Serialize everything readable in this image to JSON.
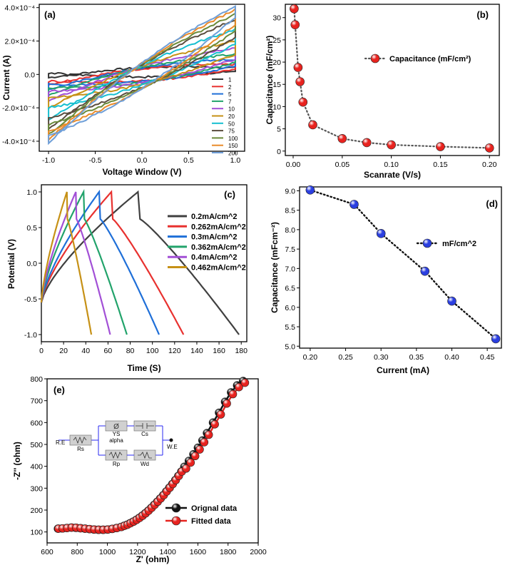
{
  "panels": {
    "a": {
      "label": "(a)",
      "xlabel": "Voltage Window (V)",
      "ylabel": "Current (A)",
      "xlim": [
        -1.1,
        1.1
      ],
      "ylim": [
        -0.00046,
        0.00042
      ],
      "xticks": [
        "-1.0",
        "-0.5",
        "0.0",
        "0.5",
        "1.0"
      ],
      "yticks": [
        "-4.0×10⁻⁴",
        "-2.0×10⁻⁴",
        "0.0",
        "2.0×10⁻⁴",
        "4.0×10⁻⁴"
      ],
      "ytick_values": [
        -0.0004,
        -0.0002,
        0,
        0.0002,
        0.0004
      ],
      "xtick_values": [
        -1.0,
        -0.5,
        0.0,
        0.5,
        1.0
      ],
      "series": [
        {
          "name": "1",
          "color": "#333333",
          "upper_left": 1e-05,
          "lower_left": -2e-05,
          "upper_right": 4e-05,
          "lower_right": 2e-05
        },
        {
          "name": "2",
          "color": "#e8312f",
          "upper_left": -4e-05,
          "lower_left": -6e-05,
          "upper_right": 6e-05,
          "lower_right": 3e-05
        },
        {
          "name": "5",
          "color": "#1f6fd8",
          "upper_left": -6e-05,
          "lower_left": -9e-05,
          "upper_right": 9e-05,
          "lower_right": 5e-05
        },
        {
          "name": "7",
          "color": "#22a36b",
          "upper_left": -8e-05,
          "lower_left": -0.00012,
          "upper_right": 0.00012,
          "lower_right": 7e-05
        },
        {
          "name": "10",
          "color": "#a24fd6",
          "upper_left": -0.0001,
          "lower_left": -0.00016,
          "upper_right": 0.00016,
          "lower_right": 9e-05
        },
        {
          "name": "20",
          "color": "#c69116",
          "upper_left": -0.00014,
          "lower_left": -0.0002,
          "upper_right": 0.0002,
          "lower_right": 0.00012
        },
        {
          "name": "50",
          "color": "#16bfd0",
          "upper_left": -0.0002,
          "lower_left": -0.00027,
          "upper_right": 0.00027,
          "lower_right": 0.00018
        },
        {
          "name": "75",
          "color": "#5a4d3e",
          "upper_left": -0.00026,
          "lower_left": -0.00033,
          "upper_right": 0.00033,
          "lower_right": 0.00022
        },
        {
          "name": "100",
          "color": "#6a8a3a",
          "upper_left": -0.0003,
          "lower_left": -0.00036,
          "upper_right": 0.00036,
          "lower_right": 0.00026
        },
        {
          "name": "150",
          "color": "#e98b2a",
          "upper_left": -0.00034,
          "lower_left": -0.00039,
          "upper_right": 0.00039,
          "lower_right": 0.0003
        },
        {
          "name": "200",
          "color": "#6f9fd8",
          "upper_left": -0.00037,
          "lower_left": -0.00041,
          "upper_right": 0.00041,
          "lower_right": 0.00034
        }
      ]
    },
    "b": {
      "label": "(b)",
      "xlabel": "Scanrate (V/s)",
      "ylabel": "Capacitance (mF/cm²)",
      "legend": "Capacitance (mF/cm²)",
      "xlim": [
        -0.008,
        0.21
      ],
      "ylim": [
        -1,
        33
      ],
      "xticks": [
        "0.00",
        "0.05",
        "0.10",
        "0.15",
        "0.20"
      ],
      "xtick_values": [
        0,
        0.05,
        0.1,
        0.15,
        0.2
      ],
      "yticks": [
        "0",
        "5",
        "10",
        "15",
        "20",
        "25",
        "30"
      ],
      "ytick_values": [
        0,
        5,
        10,
        15,
        20,
        25,
        30
      ],
      "x": [
        0.001,
        0.002,
        0.005,
        0.007,
        0.01,
        0.02,
        0.05,
        0.075,
        0.1,
        0.15,
        0.2
      ],
      "y": [
        32.0,
        28.4,
        18.8,
        15.6,
        11.0,
        5.9,
        2.8,
        1.9,
        1.4,
        1.0,
        0.7
      ],
      "color": "#e8231f"
    },
    "c": {
      "label": "(c)",
      "xlabel": "Time (S)",
      "ylabel": "Potential (V)",
      "xlim": [
        0,
        185
      ],
      "ylim": [
        -1.1,
        1.1
      ],
      "xticks": [
        "0",
        "20",
        "40",
        "60",
        "80",
        "100",
        "120",
        "140",
        "160",
        "180"
      ],
      "xtick_values": [
        0,
        20,
        40,
        60,
        80,
        100,
        120,
        140,
        160,
        180
      ],
      "yticks": [
        "-1.0",
        "-0.5",
        "0.0",
        "0.5",
        "1.0"
      ],
      "ytick_values": [
        -1,
        -0.5,
        0,
        0.5,
        1
      ],
      "series": [
        {
          "name": "0.2mA/cm^2",
          "color": "#404040",
          "t_peak": 87,
          "t_end": 178
        },
        {
          "name": "0.262mA/cm^2",
          "color": "#e8312f",
          "t_peak": 63,
          "t_end": 128
        },
        {
          "name": "0.3mA/cm^2",
          "color": "#1f6fd8",
          "t_peak": 52,
          "t_end": 106
        },
        {
          "name": "0.362mA/cm^2",
          "color": "#22a36b",
          "t_peak": 38,
          "t_end": 77
        },
        {
          "name": "0.4mA/cm^2",
          "color": "#a24fd6",
          "t_peak": 31,
          "t_end": 62
        },
        {
          "name": "0.462mA/cm^2",
          "color": "#c69116",
          "t_peak": 23,
          "t_end": 45
        }
      ]
    },
    "d": {
      "label": "(d)",
      "xlabel": "Current (mA)",
      "ylabel": "Capacitance (mFcm⁻²)",
      "legend": "mF/cm^2",
      "xlim": [
        0.185,
        0.47
      ],
      "ylim": [
        4.95,
        9.1
      ],
      "xticks": [
        "0.20",
        "0.25",
        "0.30",
        "0.35",
        "0.40",
        "0.45"
      ],
      "xtick_values": [
        0.2,
        0.25,
        0.3,
        0.35,
        0.4,
        0.45
      ],
      "yticks": [
        "5.0",
        "5.5",
        "6.0",
        "6.5",
        "7.0",
        "7.5",
        "8.0",
        "8.5",
        "9.0"
      ],
      "ytick_values": [
        5,
        5.5,
        6,
        6.5,
        7,
        7.5,
        8,
        8.5,
        9
      ],
      "x": [
        0.2,
        0.262,
        0.3,
        0.362,
        0.4,
        0.462
      ],
      "y": [
        9.02,
        8.65,
        7.9,
        6.93,
        6.16,
        5.19
      ],
      "color": "#2b3fe0"
    },
    "e": {
      "label": "(e)",
      "xlabel": "Z' (ohm)",
      "ylabel": "-Z'' (ohm)",
      "xlim": [
        600,
        2000
      ],
      "ylim": [
        50,
        800
      ],
      "xticks": [
        "600",
        "800",
        "1000",
        "1200",
        "1400",
        "1600",
        "1800",
        "2000"
      ],
      "xtick_values": [
        600,
        800,
        1000,
        1200,
        1400,
        1600,
        1800,
        2000
      ],
      "yticks": [
        "100",
        "200",
        "300",
        "400",
        "500",
        "600",
        "700",
        "800"
      ],
      "ytick_values": [
        100,
        200,
        300,
        400,
        500,
        600,
        700,
        800
      ],
      "legend": [
        "Orignal data",
        "Fitted data"
      ],
      "colors": [
        "#111111",
        "#e8231f"
      ],
      "circuit_labels": [
        "R.E",
        "Rs",
        "Rp",
        "Wd",
        "YS",
        "alpha",
        "Cs",
        "W.E"
      ],
      "points_x": [
        672,
        700,
        730,
        760,
        790,
        820,
        850,
        880,
        910,
        940,
        970,
        1000,
        1030,
        1060,
        1090,
        1110,
        1130,
        1150,
        1170,
        1190,
        1210,
        1230,
        1250,
        1270,
        1290,
        1310,
        1330,
        1350,
        1370,
        1390,
        1410,
        1430,
        1450,
        1470,
        1490,
        1510,
        1540,
        1570,
        1600,
        1630,
        1660,
        1700,
        1740,
        1780,
        1820,
        1860,
        1900
      ],
      "points_y": [
        115,
        116,
        118,
        120,
        119,
        117,
        115,
        113,
        111,
        110,
        110,
        111,
        114,
        118,
        123,
        128,
        133,
        140,
        147,
        155,
        164,
        174,
        185,
        197,
        210,
        224,
        238,
        253,
        268,
        285,
        302,
        319,
        337,
        356,
        376,
        398,
        425,
        455,
        485,
        518,
        552,
        600,
        645,
        695,
        738,
        770,
        790
      ],
      "fit_offset_x": 12,
      "fit_offset_y": -8
    }
  }
}
